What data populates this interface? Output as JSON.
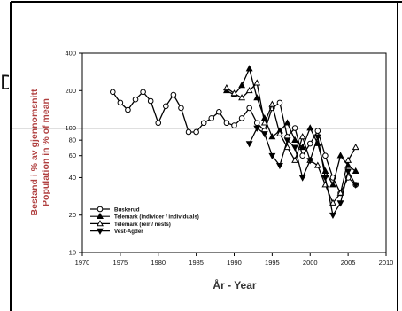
{
  "chart_data": {
    "type": "line",
    "title": "",
    "xlabel": "År - Year",
    "ylabel": "Bestand i % av gjennomsnitt",
    "ylabel2": "Population in % of mean",
    "x_range": [
      1970,
      2010
    ],
    "x_ticks": [
      1970,
      1975,
      1980,
      1985,
      1990,
      1995,
      2000,
      2005,
      2010
    ],
    "y_scale": "log",
    "y_range": [
      10,
      400
    ],
    "y_ticks": [
      10,
      20,
      40,
      60,
      80,
      100,
      200,
      400
    ],
    "y_ticks_shown": [
      "10",
      "20",
      "40",
      "60",
      "80",
      "100",
      "200",
      "400"
    ],
    "reference_line": 100,
    "grid": false,
    "legend_position": "bottom-left",
    "series": [
      {
        "name": "Buskerud",
        "marker": "circle-open",
        "points": [
          [
            1974,
            195
          ],
          [
            1975,
            160
          ],
          [
            1976,
            140
          ],
          [
            1977,
            170
          ],
          [
            1978,
            195
          ],
          [
            1979,
            165
          ],
          [
            1980,
            110
          ],
          [
            1981,
            150
          ],
          [
            1982,
            185
          ],
          [
            1983,
            145
          ],
          [
            1984,
            93
          ],
          [
            1985,
            93
          ],
          [
            1986,
            110
          ],
          [
            1987,
            120
          ],
          [
            1988,
            135
          ],
          [
            1989,
            110
          ],
          [
            1990,
            105
          ],
          [
            1991,
            120
          ],
          [
            1992,
            145
          ],
          [
            1993,
            110
          ],
          [
            1994,
            95
          ],
          [
            1995,
            145
          ],
          [
            1996,
            160
          ],
          [
            1997,
            85
          ],
          [
            1998,
            100
          ],
          [
            1999,
            60
          ],
          [
            2000,
            75
          ],
          [
            2001,
            95
          ],
          [
            2002,
            60
          ],
          [
            2003,
            40
          ],
          [
            2004,
            30
          ],
          [
            2005,
            40
          ],
          [
            2006,
            35
          ]
        ]
      },
      {
        "name": "Telemark (individer / individuals)",
        "marker": "triangle-filled",
        "points": [
          [
            1989,
            200
          ],
          [
            1990,
            185
          ],
          [
            1991,
            220
          ],
          [
            1992,
            300
          ],
          [
            1993,
            175
          ],
          [
            1994,
            120
          ],
          [
            1995,
            85
          ],
          [
            1996,
            95
          ],
          [
            1997,
            110
          ],
          [
            1998,
            80
          ],
          [
            1999,
            70
          ],
          [
            2000,
            100
          ],
          [
            2001,
            75
          ],
          [
            2002,
            45
          ],
          [
            2003,
            35
          ],
          [
            2004,
            60
          ],
          [
            2005,
            50
          ],
          [
            2006,
            45
          ]
        ]
      },
      {
        "name": "Telemark (reir / nests)",
        "marker": "triangle-open",
        "points": [
          [
            1989,
            210
          ],
          [
            1990,
            190
          ],
          [
            1991,
            175
          ],
          [
            1992,
            200
          ],
          [
            1993,
            230
          ],
          [
            1994,
            110
          ],
          [
            1995,
            155
          ],
          [
            1996,
            90
          ],
          [
            1997,
            70
          ],
          [
            1998,
            55
          ],
          [
            1999,
            85
          ],
          [
            2000,
            55
          ],
          [
            2001,
            50
          ],
          [
            2002,
            35
          ],
          [
            2003,
            25
          ],
          [
            2004,
            30
          ],
          [
            2005,
            55
          ],
          [
            2006,
            70
          ]
        ]
      },
      {
        "name": "Vest-Agder",
        "marker": "triangle-down-filled",
        "points": [
          [
            1992,
            75
          ],
          [
            1993,
            100
          ],
          [
            1994,
            90
          ],
          [
            1995,
            60
          ],
          [
            1996,
            50
          ],
          [
            1997,
            80
          ],
          [
            1998,
            70
          ],
          [
            1999,
            40
          ],
          [
            2000,
            55
          ],
          [
            2001,
            85
          ],
          [
            2002,
            40
          ],
          [
            2003,
            20
          ],
          [
            2004,
            25
          ],
          [
            2005,
            45
          ],
          [
            2006,
            35
          ]
        ]
      }
    ]
  }
}
